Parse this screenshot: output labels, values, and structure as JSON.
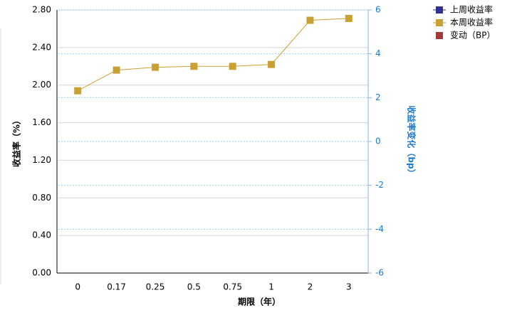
{
  "chart_data": {
    "type": "line",
    "xlabel": "期限（年）",
    "ylabel": "收益率（%）",
    "y2label": "收益率变化（bp）",
    "categories": [
      "0",
      "0.17",
      "0.25",
      "0.5",
      "0.75",
      "1",
      "2",
      "3"
    ],
    "series": [
      {
        "name": "上周收益率",
        "color": "#2e3192",
        "values": [
          null,
          null,
          null,
          null,
          null,
          null,
          null,
          null
        ]
      },
      {
        "name": "本周收益率",
        "color": "#c9a033",
        "values": [
          1.94,
          2.16,
          2.19,
          2.2,
          2.2,
          2.22,
          2.69,
          2.71
        ]
      },
      {
        "name": "变动（BP）",
        "color": "#a33a3a",
        "type": "bar",
        "axis": "y2",
        "values": [
          null,
          null,
          null,
          null,
          null,
          null,
          null,
          null
        ]
      }
    ],
    "ylim": [
      0,
      2.8
    ],
    "yticks": [
      {
        "value": 0,
        "label": "0.00"
      },
      {
        "value": 0.4,
        "label": "0.40"
      },
      {
        "value": 0.8,
        "label": "0.80"
      },
      {
        "value": 1.2,
        "label": "1.20"
      },
      {
        "value": 1.6,
        "label": "1.60"
      },
      {
        "value": 2,
        "label": "2.00"
      },
      {
        "value": 2.4,
        "label": "2.40"
      },
      {
        "value": 2.8,
        "label": "2.80"
      }
    ],
    "y2lim": [
      -6,
      6
    ],
    "y2ticks": [
      -6,
      -4,
      -2,
      0,
      2,
      4,
      6
    ],
    "grid": true,
    "legend": "top-right"
  }
}
